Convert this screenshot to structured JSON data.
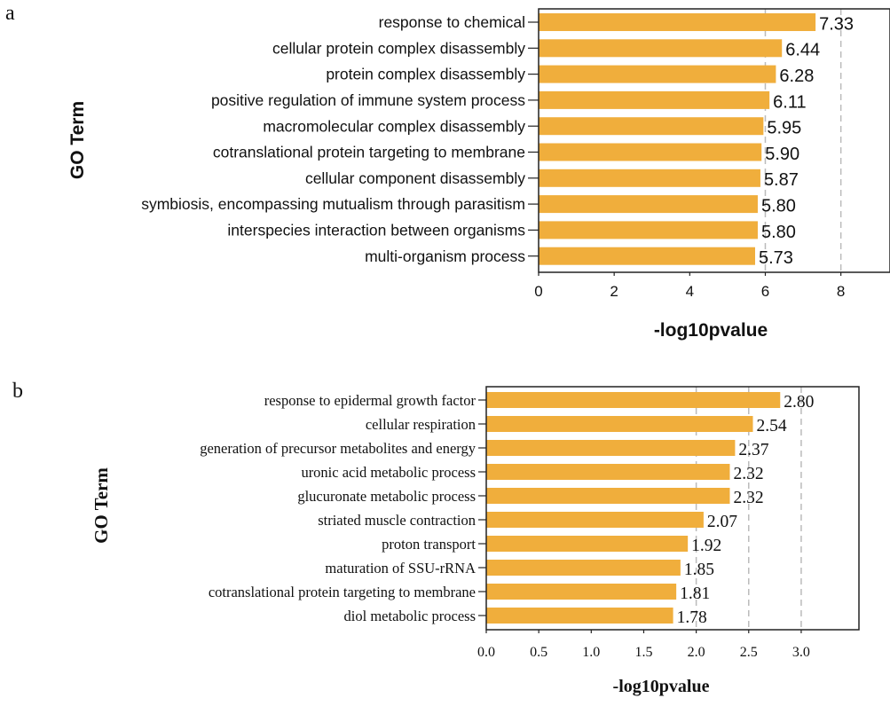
{
  "bar_color": "#F0AE3C",
  "grid_color": "#BBBBBB",
  "chart_data": [
    {
      "panel_label": "a",
      "type": "bar",
      "orientation": "horizontal",
      "ylabel": "GO Term",
      "xlabel": "-log10pvalue",
      "categories": [
        "response to chemical",
        "cellular protein complex disassembly",
        "protein complex disassembly",
        "positive regulation of immune system process",
        "macromolecular complex disassembly",
        "cotranslational protein targeting to membrane",
        "cellular component disassembly",
        "symbiosis, encompassing mutualism through parasitism",
        "interspecies interaction between organisms",
        "multi-organism process"
      ],
      "values": [
        7.33,
        6.44,
        6.28,
        6.11,
        5.95,
        5.9,
        5.87,
        5.8,
        5.8,
        5.73
      ],
      "value_labels": [
        "7.33",
        "6.44",
        "6.28",
        "6.11",
        "5.95",
        "5.90",
        "5.87",
        "5.80",
        "5.80",
        "5.73"
      ],
      "xticks": [
        "0",
        "2",
        "4",
        "6",
        "8"
      ],
      "xtick_values": [
        0,
        2,
        4,
        6,
        8
      ],
      "xlim": [
        0,
        9.3
      ],
      "dashed_gridlines": [
        6,
        8
      ]
    },
    {
      "panel_label": "b",
      "type": "bar",
      "orientation": "horizontal",
      "ylabel": "GO Term",
      "xlabel": "-log10pvalue",
      "categories": [
        "response to epidermal growth factor",
        "cellular respiration",
        "generation of precursor metabolites and energy",
        "uronic acid metabolic process",
        "glucuronate metabolic process",
        "striated muscle contraction",
        "proton transport",
        "maturation of SSU-rRNA",
        "cotranslational protein targeting to membrane",
        "diol metabolic process"
      ],
      "values": [
        2.8,
        2.54,
        2.37,
        2.32,
        2.32,
        2.07,
        1.92,
        1.85,
        1.81,
        1.78
      ],
      "value_labels": [
        "2.80",
        "2.54",
        "2.37",
        "2.32",
        "2.32",
        "2.07",
        "1.92",
        "1.85",
        "1.81",
        "1.78"
      ],
      "xticks": [
        "0.0",
        "0.5",
        "1.0",
        "1.5",
        "2.0",
        "2.5",
        "3.0"
      ],
      "xtick_values": [
        0,
        0.5,
        1,
        1.5,
        2,
        2.5,
        3
      ],
      "xlim": [
        0,
        3.55
      ],
      "dashed_gridlines": [
        2.0,
        2.5,
        3.0
      ]
    }
  ]
}
